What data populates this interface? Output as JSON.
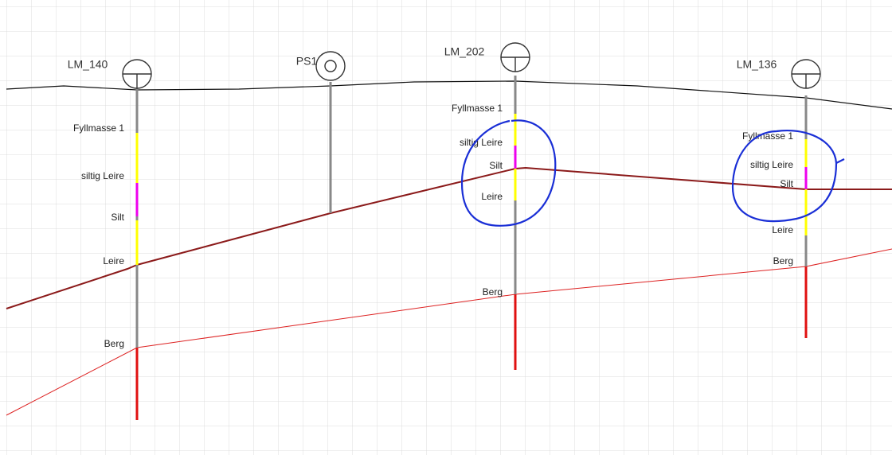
{
  "boreholes": [
    {
      "name": "LM_140",
      "layers": [
        "Fyllmasse 1",
        "siltig Leire",
        "Silt",
        "Leire",
        "Berg"
      ]
    },
    {
      "name": "PS1",
      "layers": []
    },
    {
      "name": "LM_202",
      "layers": [
        "Fyllmasse 1",
        "siltig Leire",
        "Silt",
        "Leire",
        "Berg"
      ]
    },
    {
      "name": "LM_136",
      "layers": [
        "Fyllmasse 1",
        "siltig Leire",
        "Silt",
        "Leire",
        "Berg"
      ]
    }
  ]
}
